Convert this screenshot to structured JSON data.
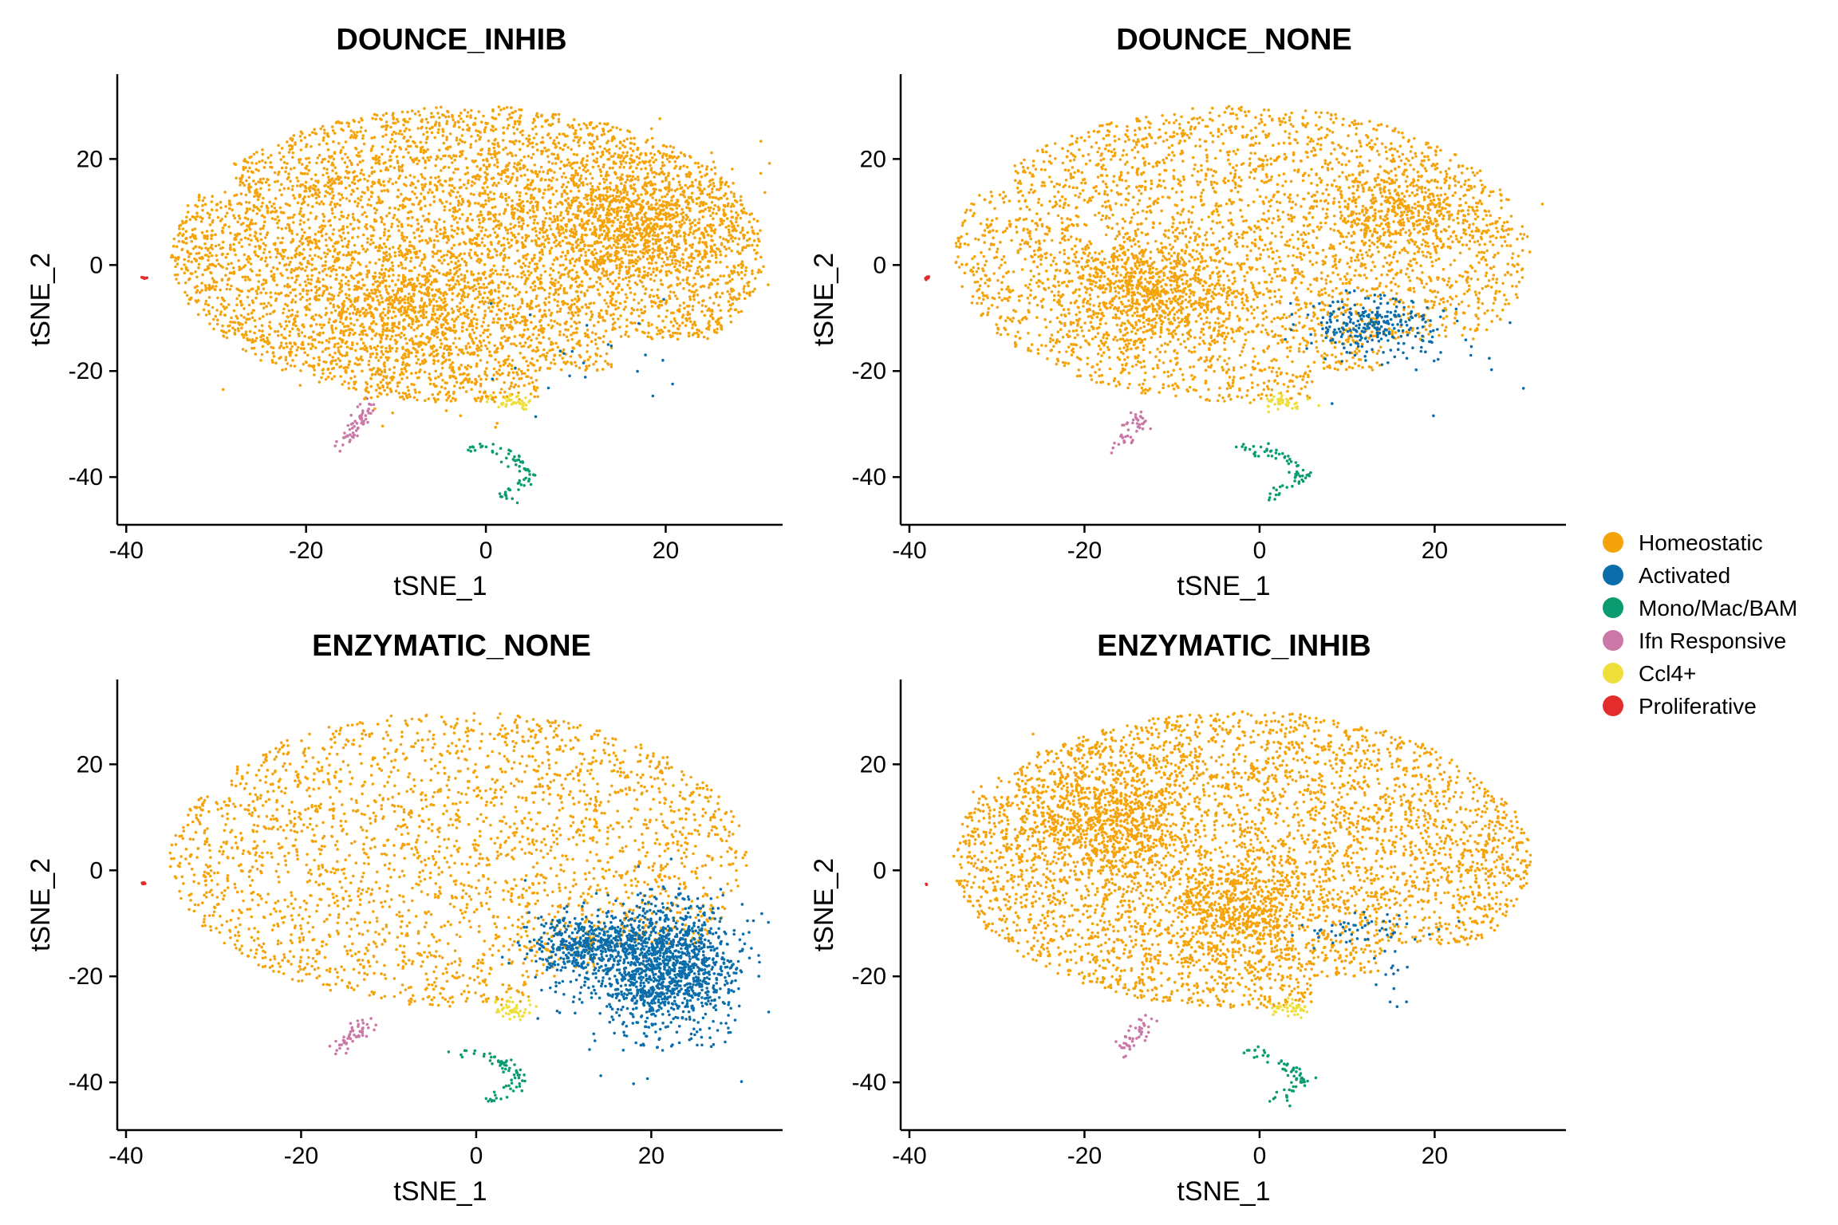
{
  "chart_data": [
    {
      "type": "scatter",
      "title": "DOUNCE_INHIB",
      "xlabel": "tSNE_1",
      "ylabel": "tSNE_2",
      "xlim": [
        -41,
        33
      ],
      "ylim": [
        -49,
        36
      ],
      "xticks": [
        -40,
        -20,
        0,
        20
      ],
      "yticks": [
        -40,
        -20,
        0,
        20
      ],
      "grid": false,
      "density": {
        "homeostatic": 5200
      },
      "clusters": [
        {
          "series": "Homeostatic",
          "shape": "body",
          "n": 5200
        },
        {
          "series": "Homeostatic",
          "shape": "blob",
          "cx": 16,
          "cy": 8,
          "rx": 12,
          "ry": 12,
          "n": 900
        },
        {
          "series": "Homeostatic",
          "shape": "blob",
          "cx": -8,
          "cy": -8,
          "rx": 12,
          "ry": 14,
          "n": 700
        },
        {
          "series": "Activated",
          "shape": "blob",
          "cx": 12,
          "cy": -18,
          "rx": 14,
          "ry": 10,
          "n": 22
        },
        {
          "series": "Mono/Mac/BAM",
          "shape": "path",
          "pts": [
            [
              -2,
              -34
            ],
            [
              3,
              -36
            ],
            [
              5,
              -40
            ],
            [
              2,
              -44
            ]
          ],
          "n": 70
        },
        {
          "series": "Ifn Responsive",
          "shape": "path",
          "pts": [
            [
              -16,
              -34
            ],
            [
              -14,
              -30
            ],
            [
              -13,
              -26
            ]
          ],
          "n": 60
        },
        {
          "series": "Ccl4+",
          "shape": "blob",
          "cx": 3,
          "cy": -26,
          "rx": 2.5,
          "ry": 1.5,
          "n": 40
        },
        {
          "series": "Proliferative",
          "shape": "blob",
          "cx": -38,
          "cy": -2.5,
          "rx": 0.3,
          "ry": 0.3,
          "n": 8
        }
      ]
    },
    {
      "type": "scatter",
      "title": "DOUNCE_NONE",
      "xlabel": "tSNE_1",
      "ylabel": "tSNE_2",
      "xlim": [
        -41,
        35
      ],
      "ylim": [
        -49,
        36
      ],
      "xticks": [
        -40,
        -20,
        0,
        20
      ],
      "yticks": [
        -40,
        -20,
        0,
        20
      ],
      "grid": false,
      "clusters": [
        {
          "series": "Homeostatic",
          "shape": "body",
          "n": 3300
        },
        {
          "series": "Homeostatic",
          "shape": "blob",
          "cx": -13,
          "cy": -5,
          "rx": 10,
          "ry": 10,
          "n": 700
        },
        {
          "series": "Homeostatic",
          "shape": "blob",
          "cx": 16,
          "cy": 10,
          "rx": 10,
          "ry": 8,
          "n": 400
        },
        {
          "series": "Activated",
          "shape": "blob",
          "cx": 13,
          "cy": -11,
          "rx": 8,
          "ry": 5,
          "n": 260
        },
        {
          "series": "Activated",
          "shape": "blob",
          "cx": 17,
          "cy": -18,
          "rx": 12,
          "ry": 9,
          "n": 22
        },
        {
          "series": "Mono/Mac/BAM",
          "shape": "path",
          "pts": [
            [
              -2,
              -34
            ],
            [
              3,
              -36
            ],
            [
              5,
              -40
            ],
            [
              1,
              -44
            ]
          ],
          "n": 70
        },
        {
          "series": "Ifn Responsive",
          "shape": "path",
          "pts": [
            [
              -16,
              -35
            ],
            [
              -14,
              -31
            ],
            [
              -14,
              -28
            ]
          ],
          "n": 45
        },
        {
          "series": "Ccl4+",
          "shape": "blob",
          "cx": 3,
          "cy": -26,
          "rx": 2.5,
          "ry": 1.5,
          "n": 40
        },
        {
          "series": "Proliferative",
          "shape": "blob",
          "cx": -38,
          "cy": -2.5,
          "rx": 0.3,
          "ry": 0.3,
          "n": 8
        }
      ]
    },
    {
      "type": "scatter",
      "title": "ENZYMATIC_NONE",
      "xlabel": "tSNE_1",
      "ylabel": "tSNE_2",
      "xlim": [
        -41,
        35
      ],
      "ylim": [
        -49,
        36
      ],
      "xticks": [
        -40,
        -20,
        0,
        20
      ],
      "yticks": [
        -40,
        -20,
        0,
        20
      ],
      "grid": false,
      "clusters": [
        {
          "series": "Homeostatic",
          "shape": "body",
          "n": 2500
        },
        {
          "series": "Activated",
          "shape": "blob",
          "cx": 21,
          "cy": -18,
          "rx": 9,
          "ry": 12,
          "n": 1500
        },
        {
          "series": "Activated",
          "shape": "blob",
          "cx": 12,
          "cy": -14,
          "rx": 6,
          "ry": 6,
          "n": 350
        },
        {
          "series": "Mono/Mac/BAM",
          "shape": "path",
          "pts": [
            [
              -2,
              -34
            ],
            [
              3,
              -36
            ],
            [
              5,
              -40
            ],
            [
              1,
              -44
            ]
          ],
          "n": 70
        },
        {
          "series": "Ifn Responsive",
          "shape": "path",
          "pts": [
            [
              -16,
              -34
            ],
            [
              -14,
              -31
            ],
            [
              -12,
              -29
            ]
          ],
          "n": 50
        },
        {
          "series": "Ccl4+",
          "shape": "blob",
          "cx": 4,
          "cy": -26,
          "rx": 2.5,
          "ry": 2,
          "n": 45
        },
        {
          "series": "Proliferative",
          "shape": "blob",
          "cx": -38,
          "cy": -2.5,
          "rx": 0.3,
          "ry": 0.3,
          "n": 8
        }
      ]
    },
    {
      "type": "scatter",
      "title": "ENZYMATIC_INHIB",
      "xlabel": "tSNE_1",
      "ylabel": "tSNE_2",
      "xlim": [
        -41,
        35
      ],
      "ylim": [
        -49,
        36
      ],
      "xticks": [
        -40,
        -20,
        0,
        20
      ],
      "yticks": [
        -40,
        -20,
        0,
        20
      ],
      "grid": false,
      "clusters": [
        {
          "series": "Homeostatic",
          "shape": "body",
          "n": 4200
        },
        {
          "series": "Homeostatic",
          "shape": "blob",
          "cx": -18,
          "cy": 10,
          "rx": 10,
          "ry": 12,
          "n": 700
        },
        {
          "series": "Homeostatic",
          "shape": "blob",
          "cx": -2,
          "cy": -8,
          "rx": 8,
          "ry": 10,
          "n": 500
        },
        {
          "series": "Activated",
          "shape": "blob",
          "cx": 12,
          "cy": -12,
          "rx": 8,
          "ry": 4,
          "n": 55
        },
        {
          "series": "Activated",
          "shape": "blob",
          "cx": 15,
          "cy": -22,
          "rx": 3,
          "ry": 6,
          "n": 12
        },
        {
          "series": "Mono/Mac/BAM",
          "shape": "path",
          "pts": [
            [
              -1,
              -34
            ],
            [
              3,
              -37
            ],
            [
              5,
              -40
            ],
            [
              1,
              -45
            ]
          ],
          "n": 65
        },
        {
          "series": "Ifn Responsive",
          "shape": "path",
          "pts": [
            [
              -16,
              -34
            ],
            [
              -14,
              -31
            ],
            [
              -13,
              -28
            ]
          ],
          "n": 45
        },
        {
          "series": "Ccl4+",
          "shape": "blob",
          "cx": 4,
          "cy": -26,
          "rx": 2.5,
          "ry": 1.5,
          "n": 40
        },
        {
          "series": "Proliferative",
          "shape": "blob",
          "cx": -38,
          "cy": -2.5,
          "rx": 0.2,
          "ry": 0.2,
          "n": 2
        }
      ]
    }
  ],
  "legend": {
    "placement": "right",
    "items": [
      {
        "name": "Homeostatic",
        "color": "#F5A30A"
      },
      {
        "name": "Activated",
        "color": "#0B6EAB"
      },
      {
        "name": "Mono/Mac/BAM",
        "color": "#0B9B70"
      },
      {
        "name": "Ifn Responsive",
        "color": "#CB78A8"
      },
      {
        "name": "Ccl4+",
        "color": "#EEDF3A"
      },
      {
        "name": "Proliferative",
        "color": "#E42C2C"
      }
    ]
  }
}
